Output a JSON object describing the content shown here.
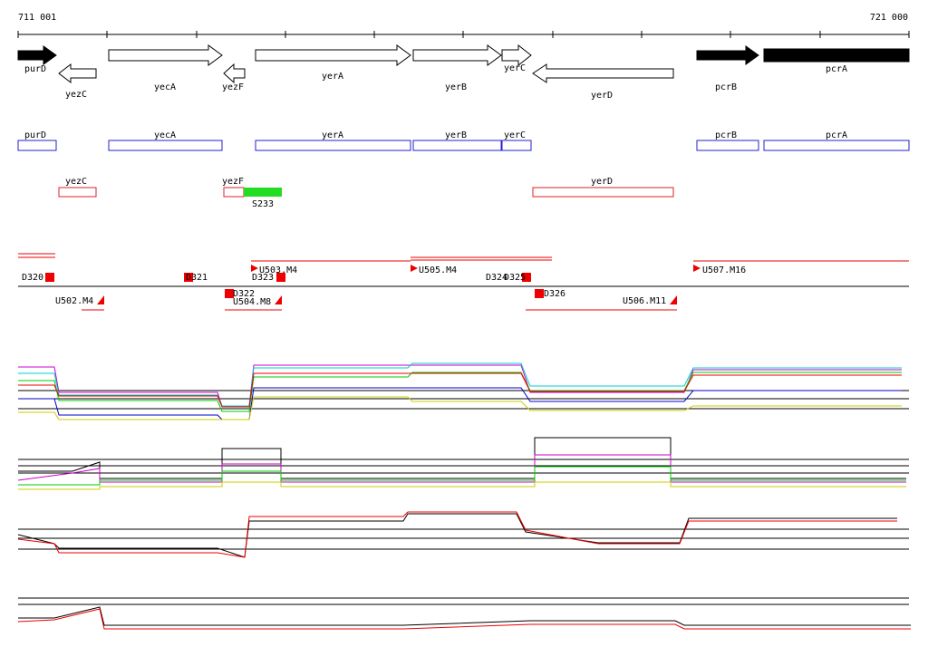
{
  "ruler": {
    "start": "711 001",
    "end": "721 000"
  },
  "genes": [
    "purD",
    "yezC",
    "yecA",
    "yezF",
    "yerA",
    "yerB",
    "yerC",
    "yerD",
    "pcrB",
    "pcrA"
  ],
  "annotation_boxes": [
    "purD",
    "yecA",
    "yerA",
    "yerB",
    "yerC",
    "pcrB",
    "pcrA"
  ],
  "other_boxes": [
    "yezC",
    "yezF",
    "yerD"
  ],
  "segment": "S233",
  "markers": [
    "D320",
    "D321",
    "U503.M4",
    "D323",
    "D322",
    "U504.M8",
    "U502.M4",
    "U505.M4",
    "D324",
    "D325",
    "D326",
    "U506.M11",
    "U507.M16"
  ]
}
